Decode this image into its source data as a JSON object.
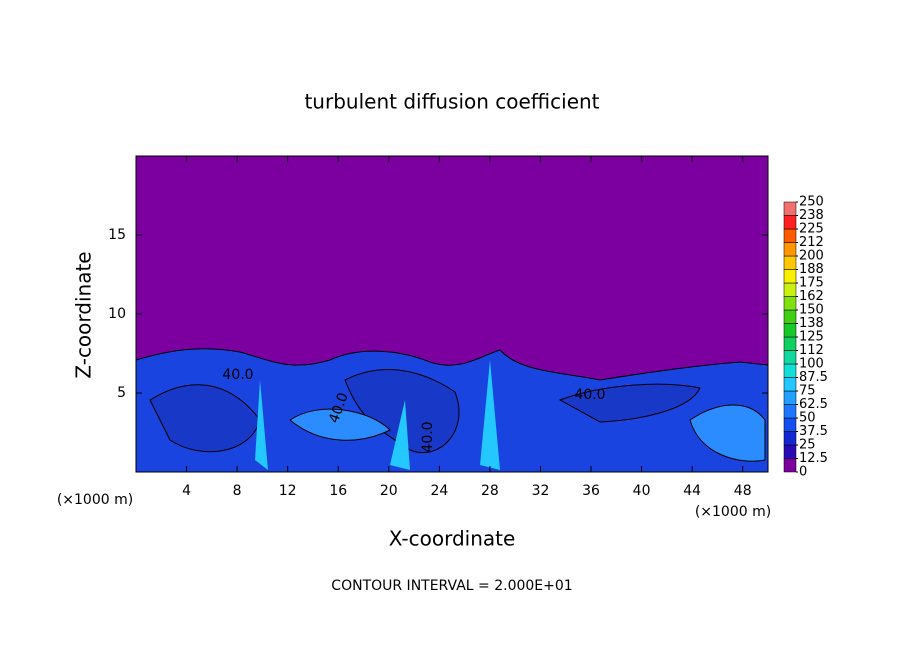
{
  "chart_data": {
    "type": "contour",
    "title": "turbulent diffusion coefficient",
    "x_label": "X-coordinate",
    "y_label": "Z-coordinate",
    "x_unit": "(×1000 m)",
    "footer": "CONTOUR INTERVAL = 2.000E+01",
    "xlim": [
      0,
      50
    ],
    "ylim": [
      0,
      20
    ],
    "xticks": [
      4,
      8,
      12,
      16,
      20,
      24,
      28,
      32,
      36,
      40,
      44,
      48
    ],
    "yticks": [
      5,
      10,
      15
    ],
    "background_color": "#7c00a0",
    "contour_labels": [
      "40.0",
      "40.0",
      "40.0",
      "40.0"
    ],
    "colorbar": {
      "ticks": [
        0,
        12.5,
        25,
        37.5,
        50,
        62.5,
        75,
        87.5,
        100,
        {
          "value": 112.5,
          "label": "112"
        },
        125,
        {
          "value": 137.5,
          "label": "138"
        },
        150,
        {
          "value": 162.5,
          "label": "162"
        },
        175,
        {
          "value": 187.5,
          "label": "188"
        },
        200,
        {
          "value": 212.5,
          "label": "212"
        },
        225,
        {
          "value": 237.5,
          "label": "238"
        },
        250
      ],
      "colors": [
        "#7c00a0",
        "#2a0ab4",
        "#1428d2",
        "#1450f0",
        "#1e78ff",
        "#22a0ff",
        "#20c8ff",
        "#10e0d8",
        "#10d8a0",
        "#10d060",
        "#18c828",
        "#40d010",
        "#80e010",
        "#c8f010",
        "#f8f000",
        "#ffc800",
        "#ff9600",
        "#ff5a00",
        "#ff2020",
        "#f07070"
      ]
    }
  }
}
